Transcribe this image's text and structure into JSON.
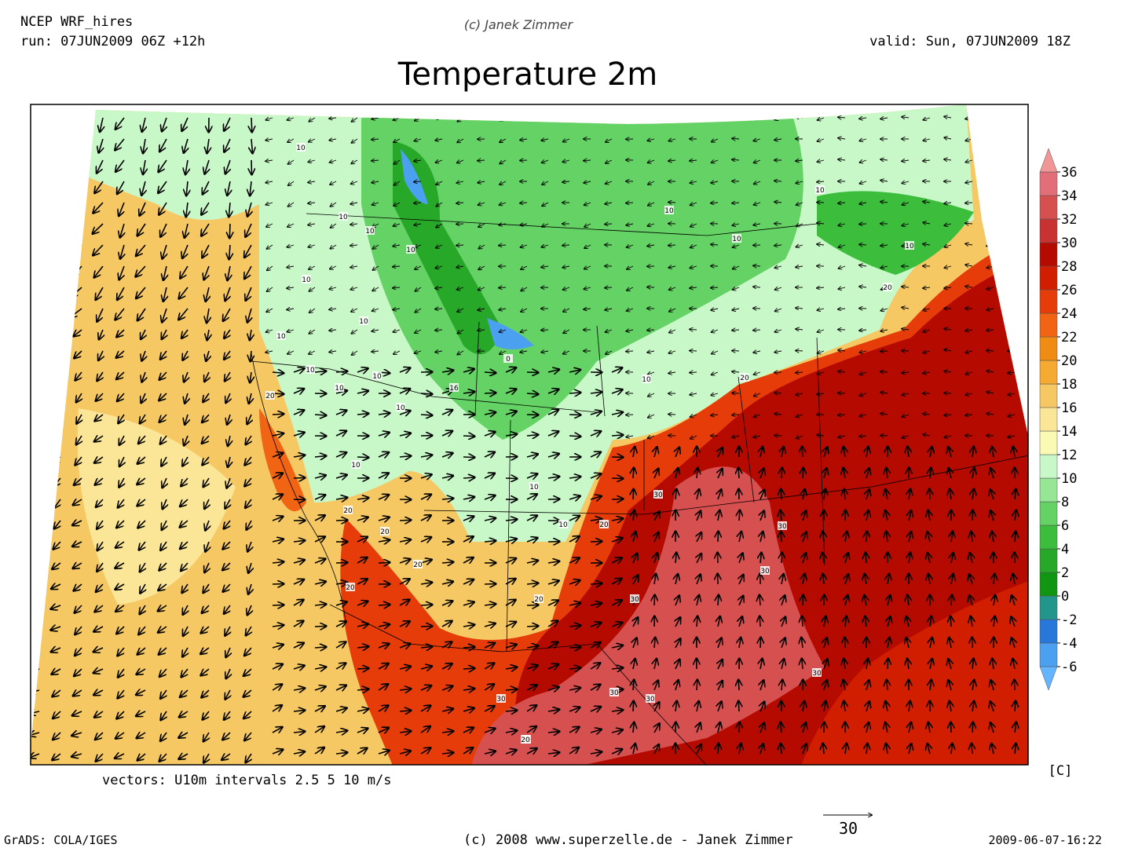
{
  "header": {
    "model": "NCEP WRF_hires",
    "run": "run: 07JUN2009 06Z +12h",
    "copyright_top": "(c) Janek Zimmer",
    "valid": "valid: Sun, 07JUN2009 18Z",
    "title": "Temperature 2m"
  },
  "map": {
    "vectors_note": "vectors: U10m intervals 2.5 5 10 m/s",
    "contour_labels": [
      10,
      10,
      10,
      10,
      10,
      10,
      10,
      10,
      10,
      10,
      10,
      10,
      16,
      10,
      10,
      10,
      10,
      20,
      20,
      20,
      20,
      20,
      20,
      20,
      20,
      20,
      30,
      30,
      30,
      30,
      30,
      30,
      30,
      30,
      30,
      0,
      10,
      10,
      10,
      20
    ]
  },
  "colorbar": {
    "levels": [
      -6,
      -4,
      -2,
      0,
      2,
      4,
      6,
      8,
      10,
      12,
      14,
      16,
      18,
      20,
      22,
      24,
      26,
      28,
      30,
      32,
      34,
      36
    ],
    "colors": [
      "#64b4ff",
      "#4ba0f0",
      "#2878dc",
      "#23968c",
      "#109610",
      "#28a828",
      "#3cbe3c",
      "#64d264",
      "#96e696",
      "#c8f8c8",
      "#fafab4",
      "#fae696",
      "#f5c864",
      "#f5aa32",
      "#f08c14",
      "#f06414",
      "#e63c0a",
      "#d21e00",
      "#b40a00",
      "#c83232",
      "#d75050",
      "#e16e78",
      "#f09696"
    ],
    "unit": "[C]"
  },
  "footer": {
    "grads": "GrADS: COLA/IGES",
    "copyright": "(c) 2008 www.superzelle.de - Janek Zimmer",
    "ref_vector": "30",
    "timestamp": "2009-06-07-16:22"
  }
}
